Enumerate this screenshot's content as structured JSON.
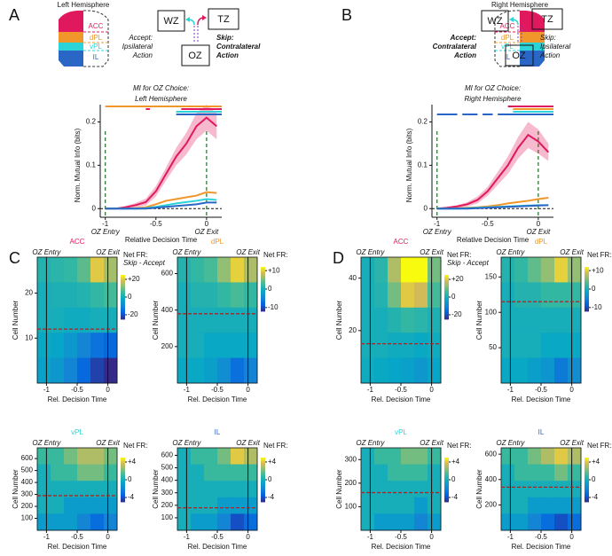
{
  "panels": [
    "A",
    "B",
    "C",
    "D"
  ],
  "diagrams": [
    {
      "hemisphere": "Left Hemisphere",
      "regions": [
        "ACC",
        "dPL",
        "vPL",
        "IL"
      ],
      "boxes": [
        "WZ",
        "TZ",
        "OZ"
      ],
      "accept": [
        "Accept:",
        "Ipsilateral",
        "Action"
      ],
      "skip": [
        "Skip:",
        "Contralateral",
        "Action"
      ],
      "emphasis": "skip"
    },
    {
      "hemisphere": "Right Hemisphere",
      "regions": [
        "ACC",
        "dPL",
        "vPL",
        "IL"
      ],
      "boxes": [
        "WZ",
        "TZ",
        "OZ"
      ],
      "accept": [
        "Accept:",
        "Contralateral",
        "Action"
      ],
      "skip": [
        "Skip:",
        "Ipsilateral",
        "Action"
      ],
      "emphasis": "accept"
    }
  ],
  "chart_data": [
    {
      "type": "line",
      "title": [
        "MI for OZ Choice:",
        "Left Hemisphere"
      ],
      "x_label": "Relative Decision Time",
      "y_label": "Norm. Mutual Info (bits)",
      "x": [
        -1,
        -0.9,
        -0.8,
        -0.7,
        -0.6,
        -0.5,
        -0.4,
        -0.3,
        -0.2,
        -0.1,
        0,
        0.1
      ],
      "series": [
        {
          "color": "#e0185e",
          "values": [
            0,
            0,
            0.003,
            0.008,
            0.015,
            0.04,
            0.08,
            0.12,
            0.15,
            0.19,
            0.21,
            0.19
          ],
          "errors": [
            0,
            0,
            0.003,
            0.005,
            0.008,
            0.012,
            0.015,
            0.02,
            0.025,
            0.03,
            0.03,
            0.03
          ]
        },
        {
          "color": "#f0962a",
          "values": [
            0,
            0,
            0,
            0.001,
            0.003,
            0.01,
            0.018,
            0.022,
            0.026,
            0.03,
            0.038,
            0.036
          ]
        },
        {
          "color": "#2ad4d8",
          "values": [
            0,
            0,
            0,
            0,
            0.001,
            0.004,
            0.008,
            0.012,
            0.015,
            0.018,
            0.022,
            0.02
          ]
        },
        {
          "color": "#2a66c6",
          "values": [
            0,
            0,
            0,
            0,
            0,
            0.002,
            0.004,
            0.006,
            0.008,
            0.01,
            0.014,
            0.014
          ]
        }
      ],
      "sig_bars": [
        {
          "color": "#f0962a",
          "segments": [
            [
              -1,
              0.15
            ]
          ]
        },
        {
          "color": "#e0185e",
          "segments": [
            [
              -0.6,
              -0.56
            ],
            [
              -0.25,
              0.15
            ]
          ]
        },
        {
          "color": "#2ad4d8",
          "segments": [
            [
              -0.3,
              0.15
            ]
          ]
        },
        {
          "color": "#2a66c6",
          "segments": [
            [
              -0.3,
              0.15
            ]
          ]
        }
      ],
      "markers": [
        {
          "x": -1,
          "label": "OZ Entry"
        },
        {
          "x": 0,
          "label": "OZ Exit"
        }
      ],
      "hline": 0,
      "xlim": [
        -1.05,
        0.15
      ],
      "xticks": [
        -1,
        -0.5,
        0
      ],
      "ylim": [
        -0.02,
        0.24
      ],
      "yticks": [
        0,
        0.1,
        0.2
      ]
    },
    {
      "type": "line",
      "title": [
        "MI for OZ Choice:",
        "Right Hemisphere"
      ],
      "x_label": "Relative Decision Time",
      "y_label": "Norm. Mutual Info (bits)",
      "x": [
        -1,
        -0.9,
        -0.8,
        -0.7,
        -0.6,
        -0.5,
        -0.4,
        -0.3,
        -0.2,
        -0.1,
        0,
        0.1
      ],
      "series": [
        {
          "color": "#e0185e",
          "values": [
            0,
            0.002,
            0.005,
            0.01,
            0.02,
            0.04,
            0.07,
            0.1,
            0.14,
            0.17,
            0.155,
            0.13
          ],
          "errors": [
            0,
            0.002,
            0.003,
            0.005,
            0.008,
            0.01,
            0.015,
            0.02,
            0.025,
            0.03,
            0.028,
            0.02
          ]
        },
        {
          "color": "#f0962a",
          "values": [
            0,
            0,
            0.001,
            0.002,
            0.003,
            0.005,
            0.008,
            0.012,
            0.015,
            0.018,
            0.022,
            0.025
          ]
        },
        {
          "color": "#2ad4d8",
          "values": [
            0,
            0,
            0,
            0.001,
            0.002,
            0.003,
            0.004,
            0.005,
            0.006,
            0.007,
            0.008,
            0.008
          ]
        },
        {
          "color": "#2a66c6",
          "values": [
            0,
            0,
            0,
            0,
            0.001,
            0.002,
            0.003,
            0.004,
            0.005,
            0.006,
            0.007,
            0.008
          ]
        }
      ],
      "sig_bars": [
        {
          "color": "#e0185e",
          "segments": [
            [
              -0.3,
              0.15
            ]
          ]
        },
        {
          "color": "#f0962a",
          "segments": [
            [
              -0.25,
              0.15
            ]
          ]
        },
        {
          "color": "#2ad4d8",
          "segments": [
            [
              -0.25,
              0.15
            ]
          ]
        },
        {
          "color": "#2a66c6",
          "segments": [
            [
              -1,
              -0.8
            ],
            [
              -0.75,
              -0.6
            ],
            [
              -0.55,
              -0.45
            ],
            [
              -0.4,
              0.15
            ]
          ]
        }
      ],
      "markers": [
        {
          "x": -1,
          "label": "OZ Entry"
        },
        {
          "x": 0,
          "label": "OZ Exit"
        }
      ],
      "hline": 0,
      "xlim": [
        -1.05,
        0.15
      ],
      "xticks": [
        -1,
        -0.5,
        0
      ],
      "ylim": [
        -0.02,
        0.24
      ],
      "yticks": [
        0,
        0.1,
        0.2
      ]
    },
    {
      "type": "heatmap",
      "title": "ACC",
      "title_color": "#e0185e",
      "x_label": "Rel. Decision Time",
      "y_label": "Cell Number",
      "colorbar_title": [
        "Net FR:",
        "Skip - Accept"
      ],
      "clim": [
        -25,
        25
      ],
      "cticks": [
        -20,
        0,
        {
          "value": 20,
          "label": "+20"
        }
      ],
      "markers": [
        {
          "x": -1,
          "label": "OZ Entry"
        },
        {
          "x": 0,
          "label": "OZ Exit"
        }
      ],
      "split": 12,
      "xlim": [
        -1.15,
        0.15
      ],
      "xticks": [
        -1,
        -0.5,
        0
      ],
      "ylim": [
        0,
        28
      ],
      "yticks": [
        10,
        20
      ],
      "z": [
        [
          2,
          3,
          4,
          8,
          20,
          14
        ],
        [
          0,
          1,
          1,
          2,
          4,
          6
        ],
        [
          0,
          0,
          -1,
          -1,
          0,
          0
        ],
        [
          -2,
          -3,
          -6,
          -10,
          -14,
          -16
        ],
        [
          -4,
          -6,
          -10,
          -16,
          -22,
          -25
        ]
      ]
    },
    {
      "type": "heatmap",
      "title": "dPL",
      "title_color": "#f0962a",
      "x_label": "Rel. Decision Time",
      "y_label": "Cell Number",
      "colorbar_title": [
        "Net FR:"
      ],
      "clim": [
        -12,
        12
      ],
      "cticks": [
        -10,
        0,
        {
          "value": 10,
          "label": "+10"
        }
      ],
      "markers": [
        {
          "x": -1,
          "label": "OZ Entry"
        },
        {
          "x": 0,
          "label": "OZ Exit"
        }
      ],
      "split": 380,
      "xlim": [
        -1.15,
        0.15
      ],
      "xticks": [
        -1,
        -0.5,
        0
      ],
      "ylim": [
        0,
        690
      ],
      "yticks": [
        200,
        400,
        600
      ],
      "z": [
        [
          1,
          2,
          3,
          6,
          10,
          7
        ],
        [
          0,
          1,
          1,
          2,
          3,
          2
        ],
        [
          0,
          0,
          0,
          0,
          0,
          0
        ],
        [
          0,
          0,
          -1,
          -1,
          -1,
          -1
        ],
        [
          -1,
          -1,
          -2,
          -4,
          -7,
          -5
        ]
      ]
    },
    {
      "type": "heatmap",
      "title": "vPL",
      "title_color": "#2ad4d8",
      "x_label": "Rel. Decision Time",
      "y_label": "Cell Number",
      "colorbar_title": [
        "Net FR:"
      ],
      "clim": [
        -5,
        5
      ],
      "cticks": [
        -4,
        0,
        {
          "value": 4,
          "label": "+4"
        }
      ],
      "markers": [
        {
          "x": -1,
          "label": "OZ Entry"
        },
        {
          "x": 0,
          "label": "OZ Exit"
        }
      ],
      "split": 290,
      "xlim": [
        -1.15,
        0.15
      ],
      "xticks": [
        -1,
        -0.5,
        0
      ],
      "ylim": [
        0,
        690
      ],
      "yticks": [
        100,
        200,
        300,
        400,
        500,
        600
      ],
      "z": [
        [
          1,
          1,
          2,
          3,
          3,
          2
        ],
        [
          0,
          1,
          1,
          2,
          2,
          1
        ],
        [
          0,
          0,
          0,
          0,
          0,
          0
        ],
        [
          0,
          0,
          -1,
          -1,
          -1,
          -1
        ],
        [
          -1,
          -1,
          -1,
          -2,
          -3,
          -2
        ]
      ]
    },
    {
      "type": "heatmap",
      "title": "IL",
      "title_color": "#2a66c6",
      "x_label": "Rel. Decision Time",
      "y_label": "Cell Number",
      "colorbar_title": [
        "Net FR:"
      ],
      "clim": [
        -5,
        5
      ],
      "cticks": [
        -4,
        0,
        {
          "value": 4,
          "label": "+4"
        }
      ],
      "markers": [
        {
          "x": -1,
          "label": "OZ Entry"
        },
        {
          "x": 0,
          "label": "OZ Exit"
        }
      ],
      "split": 180,
      "xlim": [
        -1.15,
        0.15
      ],
      "xticks": [
        -1,
        -0.5,
        0
      ],
      "ylim": [
        0,
        660
      ],
      "yticks": [
        100,
        200,
        300,
        400,
        500,
        600
      ],
      "z": [
        [
          0,
          1,
          1,
          2,
          4,
          3
        ],
        [
          0,
          0,
          1,
          1,
          1,
          1
        ],
        [
          0,
          0,
          0,
          0,
          0,
          0
        ],
        [
          0,
          0,
          0,
          -1,
          -1,
          -1
        ],
        [
          0,
          -1,
          -1,
          -2,
          -4,
          -3
        ]
      ]
    },
    {
      "type": "heatmap",
      "title": "ACC",
      "title_color": "#e0185e",
      "x_label": "Rel. Decision Time",
      "y_label": "Cell Number",
      "colorbar_title": [
        "Net FR:",
        "Skip - Accept"
      ],
      "clim": [
        -25,
        25
      ],
      "cticks": [
        -20,
        0,
        {
          "value": 20,
          "label": "+20"
        }
      ],
      "markers": [
        {
          "x": -1,
          "label": "OZ Entry"
        },
        {
          "x": 0,
          "label": "OZ Exit"
        }
      ],
      "split": 15,
      "xlim": [
        -1.15,
        0.15
      ],
      "xticks": [
        -1,
        -0.5,
        0
      ],
      "ylim": [
        0,
        48
      ],
      "yticks": [
        20,
        40
      ],
      "z": [
        [
          0,
          3,
          15,
          25,
          25,
          10
        ],
        [
          0,
          2,
          10,
          20,
          18,
          6
        ],
        [
          0,
          0,
          2,
          4,
          3,
          1
        ],
        [
          0,
          0,
          -1,
          -1,
          -2,
          -1
        ],
        [
          -1,
          -2,
          -3,
          -4,
          -6,
          -3
        ]
      ]
    },
    {
      "type": "heatmap",
      "title": "dPL",
      "title_color": "#f0962a",
      "x_label": "Rel. Decision Time",
      "y_label": "Cell Number",
      "colorbar_title": [
        "Net FR:"
      ],
      "clim": [
        -12,
        12
      ],
      "cticks": [
        -10,
        0,
        {
          "value": 10,
          "label": "+10"
        }
      ],
      "markers": [
        {
          "x": -1,
          "label": "OZ Entry"
        },
        {
          "x": 0,
          "label": "OZ Exit"
        }
      ],
      "split": 115,
      "xlim": [
        -1.15,
        0.15
      ],
      "xticks": [
        -1,
        -0.5,
        0
      ],
      "ylim": [
        0,
        178
      ],
      "yticks": [
        50,
        100,
        150
      ],
      "z": [
        [
          1,
          2,
          4,
          6,
          10,
          6
        ],
        [
          0,
          1,
          1,
          2,
          2,
          2
        ],
        [
          0,
          0,
          0,
          0,
          0,
          0
        ],
        [
          0,
          0,
          0,
          -1,
          -1,
          -1
        ],
        [
          -1,
          -1,
          -2,
          -3,
          -6,
          -4
        ]
      ]
    },
    {
      "type": "heatmap",
      "title": "vPL",
      "title_color": "#2ad4d8",
      "x_label": "Rel. Decision Time",
      "y_label": "Cell Number",
      "colorbar_title": [
        "Net FR:"
      ],
      "clim": [
        -5,
        5
      ],
      "cticks": [
        -4,
        0,
        {
          "value": 4,
          "label": "+4"
        }
      ],
      "markers": [
        {
          "x": -1,
          "label": "OZ Entry"
        },
        {
          "x": 0,
          "label": "OZ Exit"
        }
      ],
      "split": 160,
      "xlim": [
        -1.15,
        0.15
      ],
      "xticks": [
        -1,
        -0.5,
        0
      ],
      "ylim": [
        0,
        350
      ],
      "yticks": [
        100,
        200,
        300
      ],
      "z": [
        [
          0,
          1,
          1,
          2,
          2,
          1
        ],
        [
          0,
          0,
          1,
          1,
          1,
          0
        ],
        [
          0,
          0,
          0,
          0,
          0,
          0
        ],
        [
          0,
          0,
          0,
          0,
          -1,
          0
        ],
        [
          0,
          -1,
          -1,
          -1,
          -2,
          -1
        ]
      ]
    },
    {
      "type": "heatmap",
      "title": "IL",
      "title_color": "#2a66c6",
      "x_label": "Rel. Decision Time",
      "y_label": "Cell Number",
      "colorbar_title": [
        "Net FR:"
      ],
      "clim": [
        -5,
        5
      ],
      "cticks": [
        -4,
        0,
        {
          "value": 4,
          "label": "+4"
        }
      ],
      "markers": [
        {
          "x": -1,
          "label": "OZ Entry"
        },
        {
          "x": 0,
          "label": "OZ Exit"
        }
      ],
      "split": 340,
      "xlim": [
        -1.15,
        0.15
      ],
      "xticks": [
        -1,
        -0.5,
        0
      ],
      "ylim": [
        0,
        650
      ],
      "yticks": [
        200,
        400,
        600
      ],
      "z": [
        [
          1,
          1,
          2,
          3,
          4,
          3
        ],
        [
          0,
          1,
          1,
          1,
          2,
          1
        ],
        [
          0,
          0,
          0,
          0,
          0,
          0
        ],
        [
          0,
          0,
          -1,
          -1,
          -1,
          -1
        ],
        [
          -1,
          -1,
          -2,
          -3,
          -4,
          -3
        ]
      ]
    }
  ]
}
